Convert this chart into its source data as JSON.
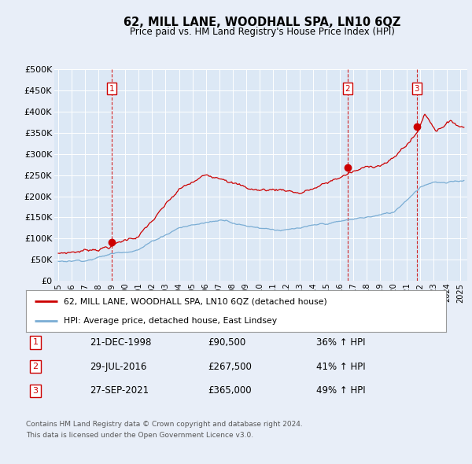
{
  "title": "62, MILL LANE, WOODHALL SPA, LN10 6QZ",
  "subtitle": "Price paid vs. HM Land Registry's House Price Index (HPI)",
  "bg_color": "#e8eef8",
  "plot_bg_color": "#dce8f5",
  "red_color": "#cc0000",
  "blue_color": "#7aadd4",
  "grid_color": "#c8d8e8",
  "ylim": [
    0,
    500000
  ],
  "yticks": [
    0,
    50000,
    100000,
    150000,
    200000,
    250000,
    300000,
    350000,
    400000,
    450000,
    500000
  ],
  "ytick_labels": [
    "£0",
    "£50K",
    "£100K",
    "£150K",
    "£200K",
    "£250K",
    "£300K",
    "£350K",
    "£400K",
    "£450K",
    "£500K"
  ],
  "xlim_start": 1994.7,
  "xlim_end": 2025.5,
  "sales": [
    {
      "year": 1998.97,
      "price": 90500,
      "label": "1"
    },
    {
      "year": 2016.58,
      "price": 267500,
      "label": "2"
    },
    {
      "year": 2021.74,
      "price": 365000,
      "label": "3"
    }
  ],
  "legend_line1": "62, MILL LANE, WOODHALL SPA, LN10 6QZ (detached house)",
  "legend_line2": "HPI: Average price, detached house, East Lindsey",
  "footer1": "Contains HM Land Registry data © Crown copyright and database right 2024.",
  "footer2": "This data is licensed under the Open Government Licence v3.0.",
  "table_rows": [
    [
      "1",
      "21-DEC-1998",
      "£90,500",
      "36% ↑ HPI"
    ],
    [
      "2",
      "29-JUL-2016",
      "£267,500",
      "41% ↑ HPI"
    ],
    [
      "3",
      "27-SEP-2021",
      "£365,000",
      "49% ↑ HPI"
    ]
  ]
}
